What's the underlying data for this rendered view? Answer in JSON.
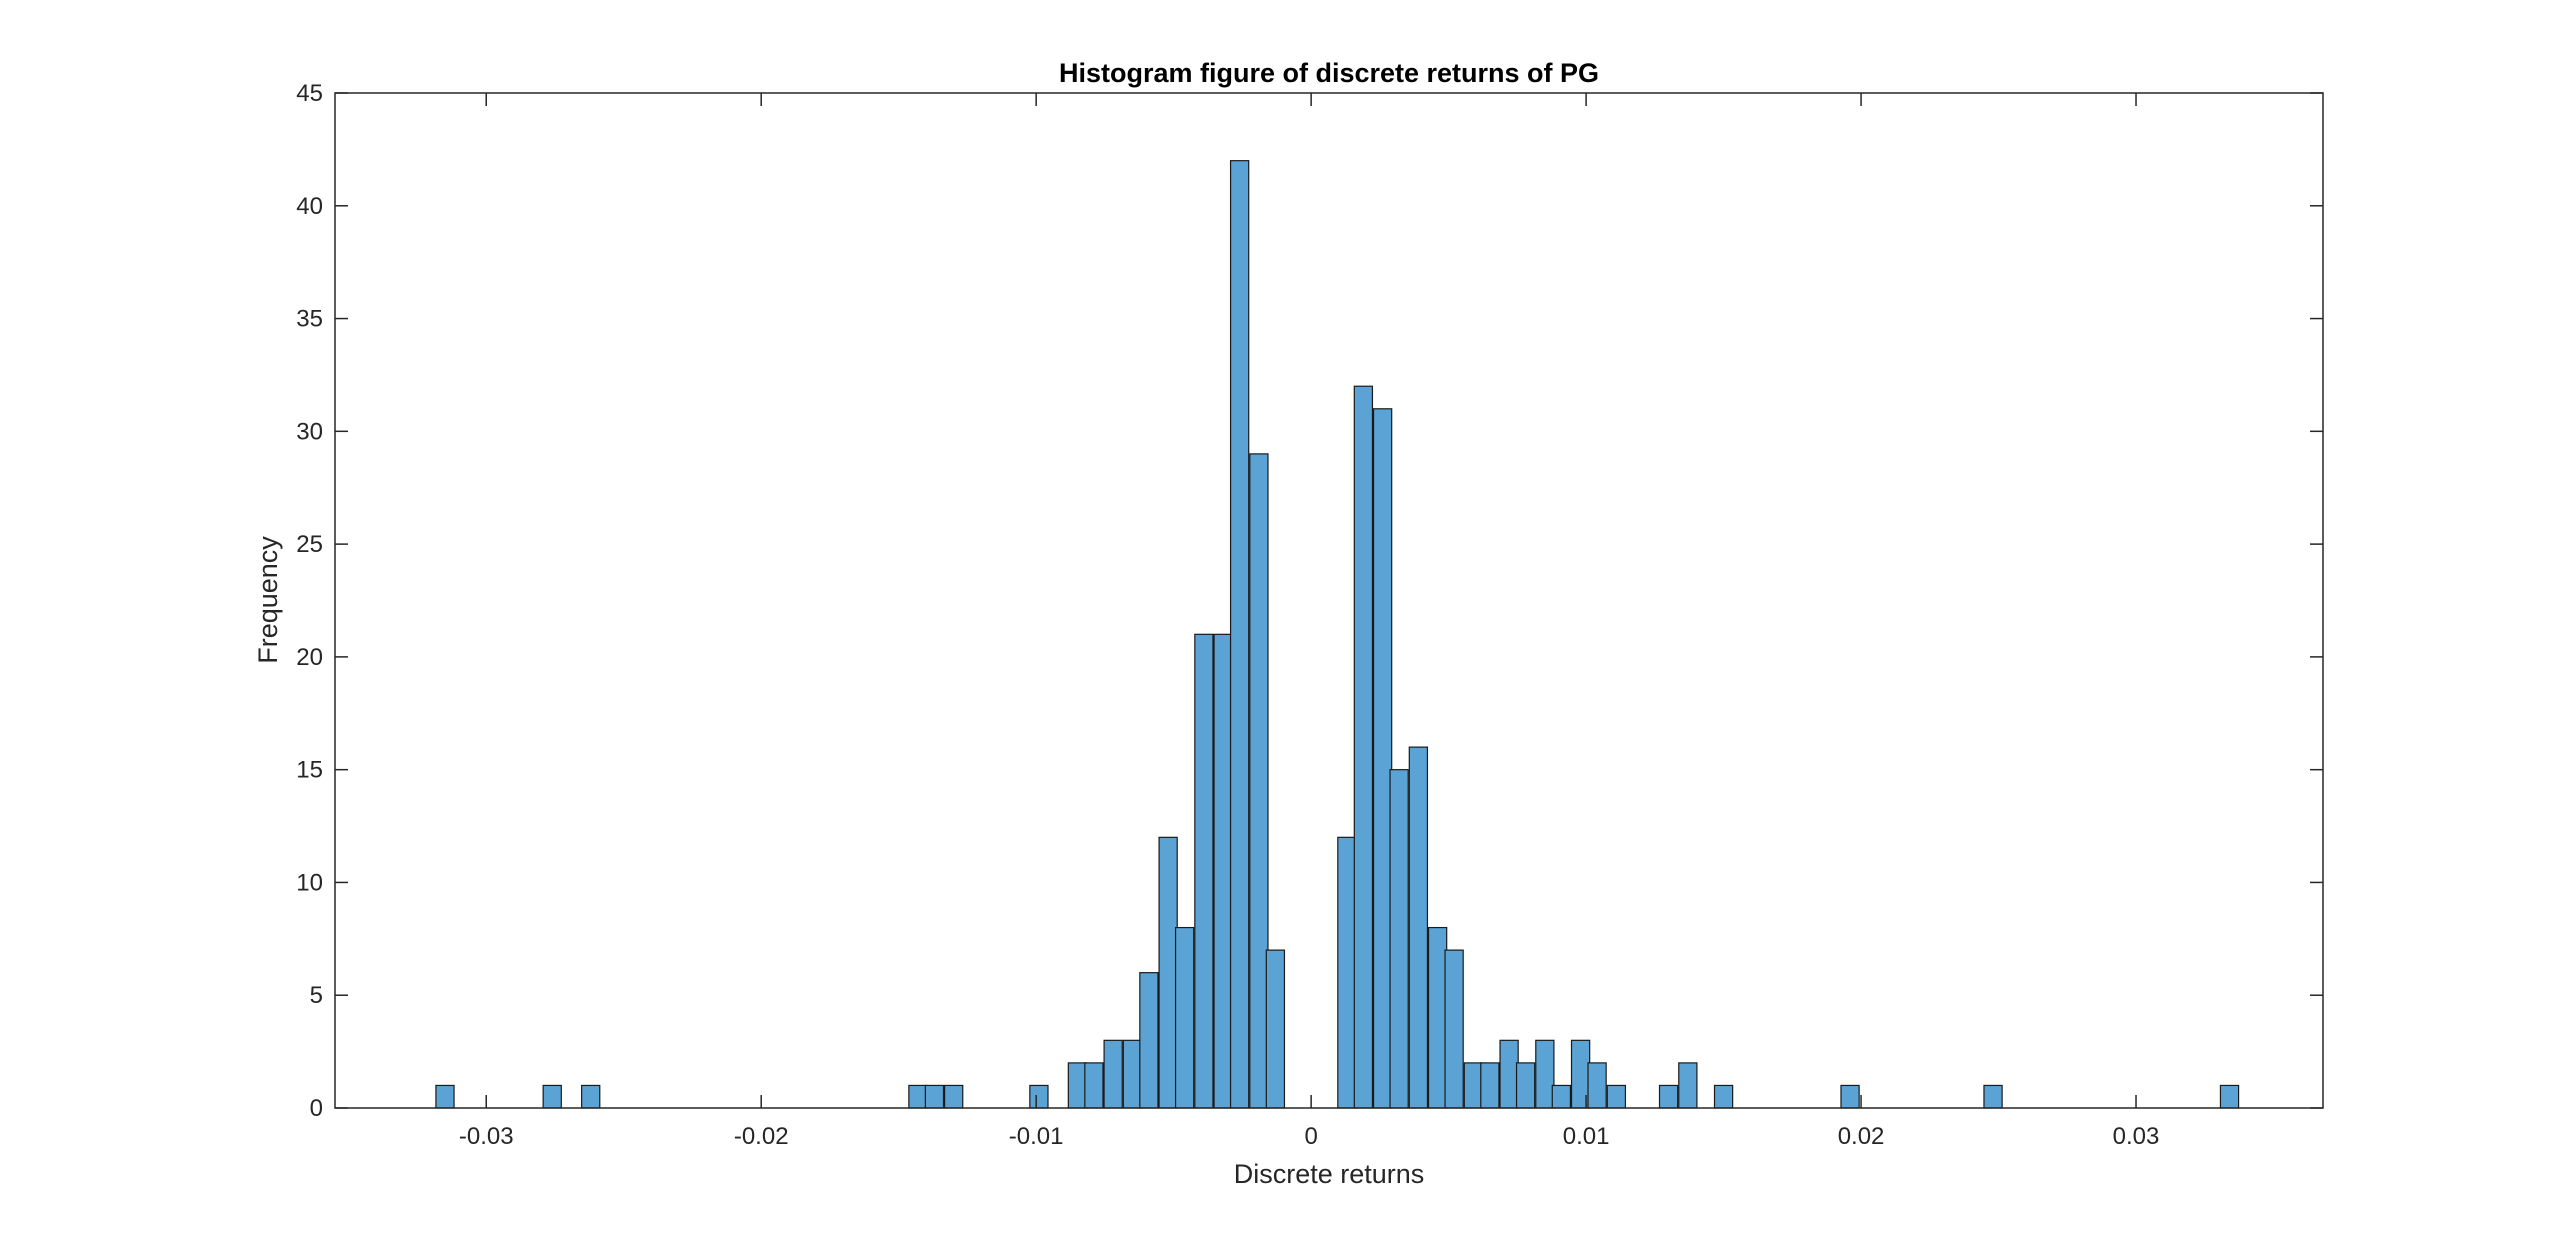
{
  "chart_data": {
    "type": "bar",
    "title": "Histogram figure of discrete returns of PG",
    "xlabel": "Discrete returns",
    "ylabel": "Frequency",
    "xlim": [
      -0.0355,
      0.0368
    ],
    "ylim": [
      0,
      45
    ],
    "x_ticks": [
      -0.03,
      -0.02,
      -0.01,
      0,
      0.01,
      0.02,
      0.03
    ],
    "x_tick_labels": [
      "-0.03",
      "-0.02",
      "-0.01",
      "0",
      "0.01",
      "0.02",
      "0.03"
    ],
    "y_ticks": [
      0,
      5,
      10,
      15,
      20,
      25,
      30,
      35,
      40,
      45
    ],
    "y_tick_labels": [
      "0",
      "5",
      "10",
      "15",
      "20",
      "25",
      "30",
      "35",
      "40",
      "45"
    ],
    "bin_width": 0.00066,
    "bin_centers": [
      -0.0315,
      -0.0276,
      -0.0262,
      -0.0143,
      -0.0137,
      -0.013,
      -0.0099,
      -0.0085,
      -0.0079,
      -0.0072,
      -0.0065,
      -0.0059,
      -0.0052,
      -0.0046,
      -0.0039,
      -0.0032,
      -0.0026,
      -0.0019,
      -0.0013,
      0.0013,
      0.0019,
      0.0026,
      0.0032,
      0.0039,
      0.0046,
      0.0052,
      0.0059,
      0.0065,
      0.0072,
      0.0078,
      0.0085,
      0.0091,
      0.0098,
      0.0104,
      0.0111,
      0.013,
      0.0137,
      0.015,
      0.0196,
      0.0248,
      0.0334
    ],
    "frequencies": [
      1,
      1,
      1,
      1,
      1,
      1,
      1,
      2,
      2,
      3,
      3,
      6,
      12,
      8,
      21,
      21,
      42,
      29,
      7,
      12,
      32,
      31,
      15,
      16,
      8,
      7,
      2,
      2,
      3,
      2,
      3,
      1,
      3,
      2,
      1,
      1,
      2,
      1,
      1,
      1,
      1
    ],
    "colors": {
      "bar_fill": "#5ba3d4",
      "bar_edge": "#1a1a1a",
      "axis": "#262626",
      "background": "#ffffff"
    },
    "grid": false,
    "box": true
  }
}
